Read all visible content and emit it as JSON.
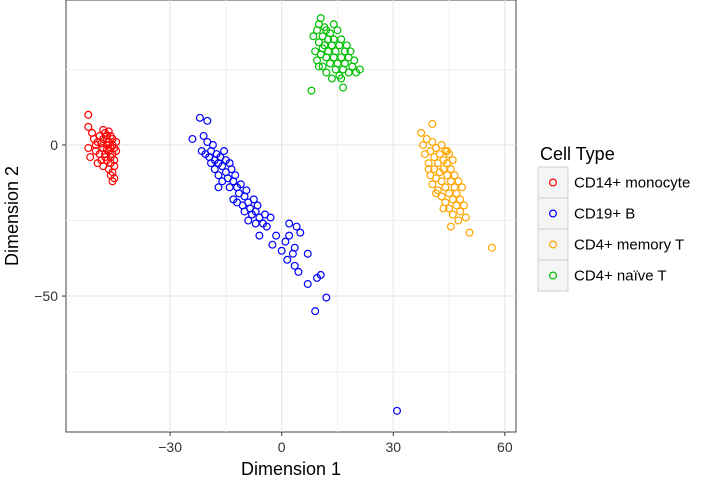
{
  "chart_data": {
    "type": "scatter",
    "xlabel": "Dimension 1",
    "ylabel": "Dimension 2",
    "xlim": [
      -58,
      63
    ],
    "ylim": [
      -95,
      48
    ],
    "x_ticks": [
      -30,
      0,
      30,
      60
    ],
    "y_ticks": [
      -50,
      0
    ],
    "x_tick_labels": [
      "−30",
      "0",
      "30",
      "60"
    ],
    "y_tick_labels": [
      "−50",
      "0"
    ],
    "grid": true,
    "legend": {
      "title": "Cell Type",
      "position": "right"
    },
    "series": [
      {
        "name": "CD14+ monocyte",
        "color": "#ff0000",
        "points": [
          [
            -52.0,
            10.0
          ],
          [
            -52.0,
            6.0
          ],
          [
            -51.0,
            4.0
          ],
          [
            -50.5,
            2.0
          ],
          [
            -52.0,
            -1.0
          ],
          [
            -51.5,
            -4.0
          ],
          [
            -50.0,
            0.0
          ],
          [
            -50.0,
            -2.0
          ],
          [
            -49.5,
            1.0
          ],
          [
            -49.0,
            -3.0
          ],
          [
            -49.0,
            3.0
          ],
          [
            -48.5,
            -5.0
          ],
          [
            -48.0,
            2.0
          ],
          [
            -48.0,
            -1.0
          ],
          [
            -48.0,
            -7.0
          ],
          [
            -47.5,
            4.0
          ],
          [
            -47.5,
            -3.0
          ],
          [
            -47.0,
            0.0
          ],
          [
            -47.0,
            -5.0
          ],
          [
            -47.0,
            3.0
          ],
          [
            -46.5,
            -8.0
          ],
          [
            -46.5,
            -2.0
          ],
          [
            -46.5,
            1.0
          ],
          [
            -46.0,
            -4.0
          ],
          [
            -46.0,
            3.0
          ],
          [
            -46.0,
            -6.0
          ],
          [
            -46.0,
            -10.0
          ],
          [
            -45.5,
            0.0
          ],
          [
            -45.5,
            -9.0
          ],
          [
            -45.5,
            -3.0
          ],
          [
            -45.5,
            2.0
          ],
          [
            -45.0,
            -5.0
          ],
          [
            -45.0,
            -1.0
          ],
          [
            -45.0,
            -7.0
          ],
          [
            -45.0,
            -11.0
          ],
          [
            -44.5,
            1.0
          ],
          [
            -49.5,
            -6.0
          ],
          [
            -48.5,
            0.5
          ],
          [
            -47.0,
            -1.5
          ],
          [
            -46.0,
            -1.0
          ],
          [
            -47.5,
            -4.0
          ],
          [
            -48.0,
            5.0
          ],
          [
            -45.5,
            -12.0
          ],
          [
            -46.5,
            4.5
          ],
          [
            -44.5,
            -2.0
          ],
          [
            -47.0,
            2.0
          ]
        ]
      },
      {
        "name": "CD19+ B",
        "color": "#0000ff",
        "points": [
          [
            -24.0,
            2.0
          ],
          [
            -22.0,
            9.0
          ],
          [
            -20.0,
            8.0
          ],
          [
            -21.0,
            3.0
          ],
          [
            -21.5,
            -2.0
          ],
          [
            -20.5,
            -3.0
          ],
          [
            -20.0,
            1.0
          ],
          [
            -19.5,
            -4.0
          ],
          [
            -19.0,
            -2.0
          ],
          [
            -18.5,
            0.0
          ],
          [
            -18.0,
            -5.0
          ],
          [
            -18.0,
            -8.0
          ],
          [
            -17.5,
            -3.0
          ],
          [
            -17.0,
            -6.0
          ],
          [
            -17.0,
            -10.0
          ],
          [
            -16.5,
            -4.0
          ],
          [
            -16.0,
            -7.0
          ],
          [
            -16.0,
            -12.0
          ],
          [
            -15.5,
            -2.0
          ],
          [
            -15.0,
            -9.0
          ],
          [
            -15.0,
            -5.0
          ],
          [
            -14.5,
            -11.0
          ],
          [
            -14.0,
            -6.0
          ],
          [
            -14.0,
            -14.0
          ],
          [
            -13.5,
            -8.0
          ],
          [
            -13.0,
            -18.0
          ],
          [
            -13.0,
            -12.0
          ],
          [
            -12.5,
            -10.0
          ],
          [
            -12.0,
            -14.0
          ],
          [
            -12.0,
            -19.0
          ],
          [
            -11.5,
            -16.0
          ],
          [
            -11.0,
            -13.0
          ],
          [
            -10.5,
            -20.0
          ],
          [
            -10.0,
            -17.0
          ],
          [
            -10.0,
            -22.0
          ],
          [
            -9.5,
            -15.0
          ],
          [
            -9.0,
            -19.0
          ],
          [
            -9.0,
            -25.0
          ],
          [
            -8.5,
            -21.0
          ],
          [
            -8.0,
            -23.0
          ],
          [
            -7.5,
            -18.0
          ],
          [
            -7.0,
            -26.0
          ],
          [
            -7.0,
            -22.0
          ],
          [
            -6.5,
            -20.0
          ],
          [
            -6.0,
            -24.0
          ],
          [
            -6.0,
            -30.0
          ],
          [
            -5.0,
            -26.0
          ],
          [
            -4.5,
            -23.0
          ],
          [
            -4.0,
            -27.0
          ],
          [
            -3.0,
            -24.0
          ],
          [
            -2.5,
            -33.0
          ],
          [
            -1.5,
            -30.0
          ],
          [
            0.0,
            -35.0
          ],
          [
            1.0,
            -32.0
          ],
          [
            1.5,
            -38.0
          ],
          [
            2.0,
            -30.0
          ],
          [
            3.0,
            -36.0
          ],
          [
            3.5,
            -40.0
          ],
          [
            4.0,
            -27.0
          ],
          [
            4.5,
            -42.0
          ],
          [
            5.0,
            -29.0
          ],
          [
            3.5,
            -34.0
          ],
          [
            7.0,
            -46.0
          ],
          [
            9.0,
            -55.0
          ],
          [
            9.5,
            -44.0
          ],
          [
            10.5,
            -43.0
          ],
          [
            12.0,
            -50.5
          ],
          [
            7.0,
            -36.0
          ],
          [
            2.0,
            -26.0
          ],
          [
            -17.0,
            -14.0
          ],
          [
            -19.0,
            -6.0
          ],
          [
            31.0,
            -88.0
          ]
        ]
      },
      {
        "name": "CD4+ memory T",
        "color": "#ffa500",
        "points": [
          [
            37.5,
            4.0
          ],
          [
            40.5,
            7.0
          ],
          [
            38.0,
            0.0
          ],
          [
            38.5,
            -3.0
          ],
          [
            39.0,
            2.0
          ],
          [
            39.5,
            -6.0
          ],
          [
            40.0,
            -2.0
          ],
          [
            40.0,
            -10.0
          ],
          [
            40.5,
            1.0
          ],
          [
            40.5,
            -13.0
          ],
          [
            41.0,
            -4.0
          ],
          [
            41.0,
            -8.0
          ],
          [
            41.5,
            -1.0
          ],
          [
            41.5,
            -11.0
          ],
          [
            42.0,
            -6.0
          ],
          [
            42.0,
            -15.0
          ],
          [
            42.5,
            -3.0
          ],
          [
            42.5,
            -9.0
          ],
          [
            43.0,
            0.0
          ],
          [
            43.0,
            -12.0
          ],
          [
            43.0,
            -17.0
          ],
          [
            43.5,
            -5.0
          ],
          [
            43.5,
            -8.0
          ],
          [
            44.0,
            -2.0
          ],
          [
            44.0,
            -14.0
          ],
          [
            44.0,
            -19.0
          ],
          [
            44.5,
            -10.0
          ],
          [
            44.5,
            -6.0
          ],
          [
            45.0,
            -16.0
          ],
          [
            45.0,
            -21.0
          ],
          [
            45.0,
            -3.0
          ],
          [
            45.5,
            -12.0
          ],
          [
            45.5,
            -8.0
          ],
          [
            46.0,
            -18.0
          ],
          [
            46.0,
            -23.0
          ],
          [
            46.0,
            -5.0
          ],
          [
            46.5,
            -14.0
          ],
          [
            46.5,
            -10.0
          ],
          [
            47.0,
            -20.0
          ],
          [
            47.0,
            -16.0
          ],
          [
            47.5,
            -12.0
          ],
          [
            47.5,
            -25.0
          ],
          [
            48.0,
            -18.0
          ],
          [
            48.0,
            -22.0
          ],
          [
            48.5,
            -14.0
          ],
          [
            49.0,
            -20.0
          ],
          [
            49.5,
            -24.0
          ],
          [
            50.5,
            -29.0
          ],
          [
            56.5,
            -34.0
          ],
          [
            43.5,
            -21.0
          ],
          [
            45.5,
            -27.0
          ],
          [
            39.5,
            -8.0
          ],
          [
            41.5,
            -16.0
          ],
          [
            44.5,
            -2.0
          ]
        ]
      },
      {
        "name": "CD4+ naïve T",
        "color": "#00c000",
        "points": [
          [
            8.0,
            18.0
          ],
          [
            8.5,
            36.0
          ],
          [
            9.0,
            31.0
          ],
          [
            9.5,
            38.0
          ],
          [
            9.5,
            28.0
          ],
          [
            10.0,
            34.0
          ],
          [
            10.0,
            40.0
          ],
          [
            10.5,
            30.0
          ],
          [
            10.5,
            42.0
          ],
          [
            11.0,
            26.0
          ],
          [
            11.0,
            36.0
          ],
          [
            11.5,
            33.0
          ],
          [
            11.5,
            39.0
          ],
          [
            12.0,
            29.0
          ],
          [
            12.0,
            24.0
          ],
          [
            12.5,
            35.0
          ],
          [
            12.5,
            31.0
          ],
          [
            13.0,
            37.0
          ],
          [
            13.0,
            27.0
          ],
          [
            13.5,
            33.0
          ],
          [
            13.5,
            22.0
          ],
          [
            14.0,
            29.0
          ],
          [
            14.0,
            35.0
          ],
          [
            14.5,
            25.0
          ],
          [
            14.5,
            31.0
          ],
          [
            15.0,
            38.0
          ],
          [
            15.0,
            27.0
          ],
          [
            15.5,
            33.0
          ],
          [
            15.5,
            23.0
          ],
          [
            16.0,
            29.0
          ],
          [
            16.0,
            35.0
          ],
          [
            16.5,
            25.0
          ],
          [
            16.5,
            19.0
          ],
          [
            17.0,
            31.0
          ],
          [
            17.0,
            27.0
          ],
          [
            17.5,
            33.0
          ],
          [
            18.0,
            24.0
          ],
          [
            18.0,
            29.0
          ],
          [
            18.5,
            31.0
          ],
          [
            19.0,
            26.0
          ],
          [
            19.5,
            28.0
          ],
          [
            20.0,
            24.0
          ],
          [
            21.0,
            25.0
          ],
          [
            10.0,
            26.0
          ],
          [
            12.0,
            38.0
          ],
          [
            14.0,
            40.0
          ],
          [
            16.0,
            22.0
          ],
          [
            11.0,
            32.0
          ]
        ]
      }
    ]
  }
}
